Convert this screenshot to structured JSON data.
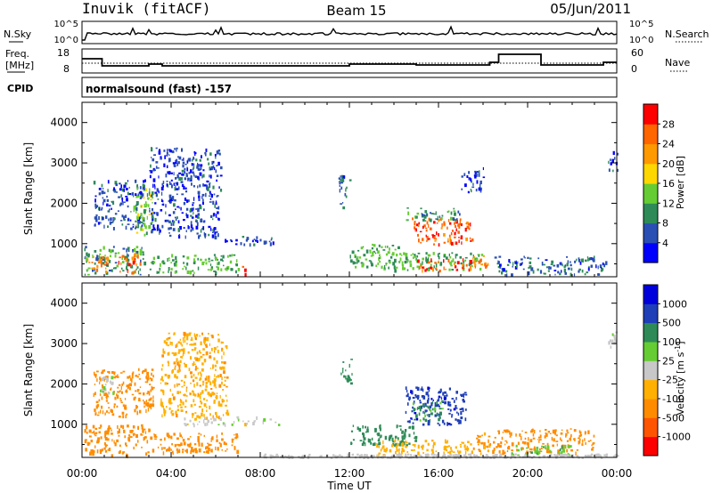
{
  "header": {
    "station": "Inuvik (fitACF)",
    "beam": "Beam 15",
    "date": "05/Jun/2011"
  },
  "strip_nsky": {
    "left_label": "N.Sky",
    "left_ticks": [
      "10^5",
      "10^0"
    ],
    "right_label": "N.Search",
    "right_ticks": [
      "10^5",
      "10^0"
    ]
  },
  "strip_freq": {
    "left_label_line1": "Freq.",
    "left_label_line2": "[MHz]",
    "left_ticks": [
      "18",
      "8"
    ],
    "right_label": "Nave",
    "right_ticks": [
      "60",
      "0"
    ]
  },
  "strip_cpid": {
    "label": "CPID",
    "program": "normalsound (fast) -157"
  },
  "colors": {
    "power": [
      "#0000ff",
      "#2a4fb4",
      "#2e8b57",
      "#66cc33",
      "#ffd700",
      "#ff9900",
      "#ff6600",
      "#ff0000"
    ],
    "velocity": [
      "#ff0000",
      "#ff5500",
      "#ff8c00",
      "#ffb000",
      "#c8c8c8",
      "#66cc33",
      "#2e8b57",
      "#1f3fb8",
      "#0000dd"
    ]
  },
  "chart_data": [
    {
      "type": "heatmap",
      "title": "Power",
      "ylabel": "Slant Range [km]",
      "ylim": [
        180,
        4500
      ],
      "yticks": [
        1000,
        2000,
        3000,
        4000
      ],
      "xlim_hours": [
        0,
        24
      ],
      "colorbar": {
        "label": "Power [dB]",
        "range": [
          0,
          32
        ],
        "ticks": [
          "4",
          "8",
          "12",
          "16",
          "20",
          "24",
          "28"
        ]
      },
      "regions": [
        {
          "t0": 0.1,
          "t1": 2.8,
          "r0": 250,
          "r1": 950,
          "v": 10
        },
        {
          "t0": 0.2,
          "t1": 1.2,
          "r0": 300,
          "r1": 700,
          "v": 24
        },
        {
          "t0": 1.6,
          "t1": 2.6,
          "r0": 300,
          "r1": 800,
          "v": 26
        },
        {
          "t0": 0.5,
          "t1": 2.8,
          "r0": 1400,
          "r1": 2600,
          "v": 6
        },
        {
          "t0": 2.3,
          "t1": 3.3,
          "r0": 1200,
          "r1": 2400,
          "v": 13
        },
        {
          "t0": 3.0,
          "t1": 7.0,
          "r0": 300,
          "r1": 750,
          "v": 12
        },
        {
          "t0": 3.0,
          "t1": 6.2,
          "r0": 1200,
          "r1": 3400,
          "v": 5
        },
        {
          "t0": 6.3,
          "t1": 8.8,
          "r0": 1000,
          "r1": 1200,
          "v": 5
        },
        {
          "t0": 7.0,
          "t1": 7.3,
          "r0": 250,
          "r1": 450,
          "v": 27
        },
        {
          "t0": 11.5,
          "t1": 12.0,
          "r0": 1900,
          "r1": 2700,
          "v": 6
        },
        {
          "t0": 12.0,
          "t1": 14.2,
          "r0": 400,
          "r1": 1000,
          "v": 12
        },
        {
          "t0": 13.8,
          "t1": 18.0,
          "r0": 350,
          "r1": 800,
          "v": 12
        },
        {
          "t0": 15.0,
          "t1": 17.5,
          "r0": 350,
          "r1": 650,
          "v": 27
        },
        {
          "t0": 14.8,
          "t1": 17.5,
          "r0": 1000,
          "r1": 1650,
          "v": 27
        },
        {
          "t0": 14.5,
          "t1": 17.0,
          "r0": 1600,
          "r1": 1900,
          "v": 10
        },
        {
          "t0": 17.5,
          "t1": 18.2,
          "r0": 400,
          "r1": 800,
          "v": 24
        },
        {
          "t0": 18.5,
          "t1": 23.5,
          "r0": 250,
          "r1": 700,
          "v": 7
        },
        {
          "t0": 17.0,
          "t1": 18.0,
          "r0": 2300,
          "r1": 2900,
          "v": 5
        },
        {
          "t0": 23.6,
          "t1": 24.0,
          "r0": 2800,
          "r1": 3300,
          "v": 6
        }
      ]
    },
    {
      "type": "heatmap",
      "title": "Velocity",
      "ylabel": "Slant Range [km]",
      "ylim": [
        180,
        4500
      ],
      "yticks": [
        1000,
        2000,
        3000,
        4000
      ],
      "xlabel": "Time UT",
      "xticks": [
        "00:00",
        "04:00",
        "08:00",
        "12:00",
        "16:00",
        "20:00",
        "00:00"
      ],
      "xlim_hours": [
        0,
        24
      ],
      "colorbar": {
        "label": "Velocity [m s^-1]",
        "levels": [
          "1000",
          "500",
          "100",
          "25",
          "-25",
          "-100",
          "-500",
          "-1000"
        ]
      },
      "regions": [
        {
          "t0": 0.1,
          "t1": 3.0,
          "r0": 250,
          "r1": 1000,
          "v": -300
        },
        {
          "t0": 0.5,
          "t1": 3.2,
          "r0": 1200,
          "r1": 2400,
          "v": -200
        },
        {
          "t0": 0.8,
          "t1": 1.6,
          "r0": 1800,
          "r1": 2200,
          "v": 0
        },
        {
          "t0": 3.0,
          "t1": 7.0,
          "r0": 300,
          "r1": 800,
          "v": -150
        },
        {
          "t0": 3.5,
          "t1": 6.5,
          "r0": 1200,
          "r1": 3300,
          "v": -80
        },
        {
          "t0": 4.5,
          "t1": 8.8,
          "r0": 1000,
          "r1": 1200,
          "v": 0
        },
        {
          "t0": 11.6,
          "t1": 12.1,
          "r0": 2000,
          "r1": 2700,
          "v": 200
        },
        {
          "t0": 12.0,
          "t1": 15.0,
          "r0": 500,
          "r1": 1000,
          "v": 150
        },
        {
          "t0": 13.2,
          "t1": 17.5,
          "r0": 250,
          "r1": 650,
          "v": -60
        },
        {
          "t0": 14.5,
          "t1": 17.2,
          "r0": 1000,
          "r1": 1950,
          "v": 800
        },
        {
          "t0": 14.8,
          "t1": 16.2,
          "r0": 1100,
          "r1": 1600,
          "v": 120
        },
        {
          "t0": 17.5,
          "t1": 18.5,
          "r0": 300,
          "r1": 800,
          "v": -120
        },
        {
          "t0": 18.5,
          "t1": 23.0,
          "r0": 300,
          "r1": 900,
          "v": -250
        },
        {
          "t0": 19.0,
          "t1": 22.0,
          "r0": 250,
          "r1": 500,
          "v": 80
        },
        {
          "t0": 23.6,
          "t1": 24.0,
          "r0": 2800,
          "r1": 3300,
          "v": 0
        }
      ]
    }
  ]
}
